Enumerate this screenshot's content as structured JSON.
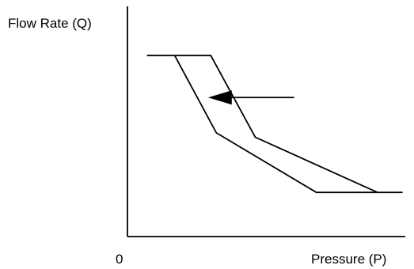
{
  "chart_data": {
    "type": "line",
    "title": "",
    "ylabel": "Flow Rate (Q)",
    "xlabel": "Pressure (P)",
    "origin_label": "0",
    "grid": false,
    "legend": "none",
    "series": [
      {
        "x": [
          0.07,
          0.3,
          0.46,
          0.9
        ],
        "y": [
          0.82,
          0.82,
          0.45,
          0.2
        ]
      },
      {
        "x": [
          0.17,
          0.32,
          0.68,
          0.99
        ],
        "y": [
          0.82,
          0.47,
          0.2,
          0.2
        ]
      }
    ],
    "annotations": [
      {
        "type": "arrow",
        "direction": "left",
        "from": [
          0.6,
          0.63
        ],
        "to": [
          0.29,
          0.63
        ]
      }
    ],
    "xlim": [
      0,
      1
    ],
    "ylim": [
      0,
      1
    ],
    "colors": {
      "line": "#000000",
      "axis": "#000000"
    }
  }
}
